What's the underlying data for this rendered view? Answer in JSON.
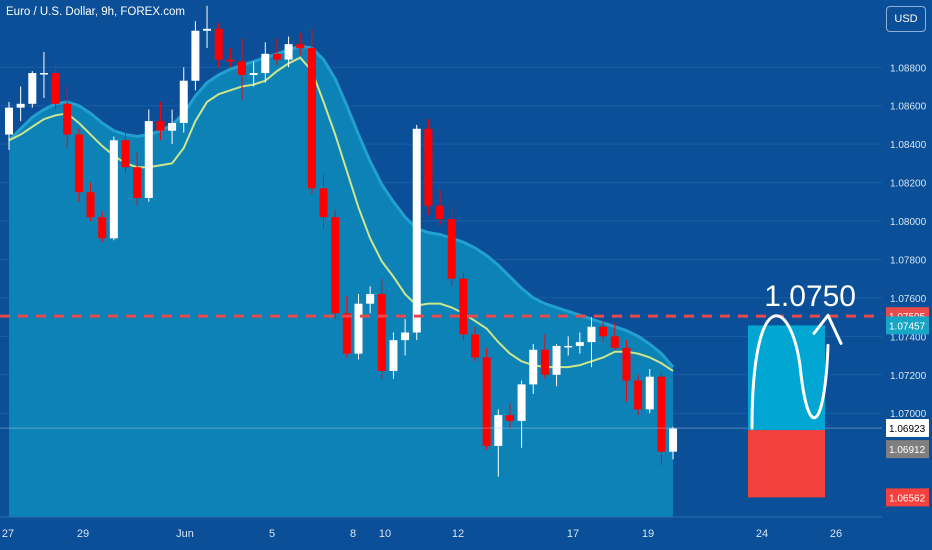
{
  "header": {
    "title": "Euro / U.S. Dollar, 9h, FOREX.com"
  },
  "currency_button": {
    "label": "USD"
  },
  "colors": {
    "background": "#0a4f98",
    "band_fill": "#0d85b8",
    "bull": "#ffffff",
    "bear": "#ff0000",
    "ma": "#cde68a",
    "target_box": "#01a6d3",
    "stop_box": "#f5413d",
    "resistance": "#e8494a"
  },
  "chart_data": {
    "type": "candlestick",
    "title": "Euro / U.S. Dollar, 9h, FOREX.com",
    "ylim": [
      1.0646,
      1.0915
    ],
    "y_ticks": [
      "1.08800",
      "1.08600",
      "1.08400",
      "1.08200",
      "1.08000",
      "1.07800",
      "1.07600",
      "1.07400",
      "1.07200",
      "1.07000"
    ],
    "x_ticks": [
      "27",
      "29",
      "Jun",
      "5",
      "8",
      "10",
      "12",
      "17",
      "19",
      "24",
      "26"
    ],
    "candles": [
      [
        1.0845,
        1.0862,
        1.0837,
        1.0859
      ],
      [
        1.0859,
        1.087,
        1.0852,
        1.0861
      ],
      [
        1.0861,
        1.0878,
        1.0859,
        1.0877
      ],
      [
        1.0877,
        1.0888,
        1.0864,
        1.0877
      ],
      [
        1.0877,
        1.0881,
        1.0858,
        1.0861
      ],
      [
        1.0861,
        1.087,
        1.0838,
        1.0845
      ],
      [
        1.0845,
        1.0848,
        1.081,
        1.0815
      ],
      [
        1.0815,
        1.082,
        1.08,
        1.0802
      ],
      [
        1.0802,
        1.0805,
        1.0789,
        1.0791
      ],
      [
        1.0791,
        1.0844,
        1.079,
        1.0842
      ],
      [
        1.0842,
        1.0846,
        1.0825,
        1.0828
      ],
      [
        1.0828,
        1.0836,
        1.0808,
        1.0812
      ],
      [
        1.0812,
        1.0858,
        1.081,
        1.0852
      ],
      [
        1.0852,
        1.0862,
        1.0842,
        1.0847
      ],
      [
        1.0847,
        1.0858,
        1.084,
        1.0851
      ],
      [
        1.0851,
        1.088,
        1.0846,
        1.0873
      ],
      [
        1.0873,
        1.0904,
        1.0868,
        1.0899
      ],
      [
        1.0899,
        1.0912,
        1.089,
        1.09
      ],
      [
        1.09,
        1.0903,
        1.088,
        1.0884
      ],
      [
        1.0884,
        1.089,
        1.088,
        1.0883
      ],
      [
        1.0883,
        1.0895,
        1.0863,
        1.0876
      ],
      [
        1.0876,
        1.0883,
        1.087,
        1.0877
      ],
      [
        1.0877,
        1.0893,
        1.0872,
        1.0887
      ],
      [
        1.0887,
        1.0895,
        1.0881,
        1.0884
      ],
      [
        1.0884,
        1.0896,
        1.088,
        1.0892
      ],
      [
        1.0892,
        1.0898,
        1.0886,
        1.089
      ],
      [
        1.089,
        1.09,
        1.0814,
        1.0817
      ],
      [
        1.0817,
        1.0824,
        1.0796,
        1.0802
      ],
      [
        1.0802,
        1.0806,
        1.0749,
        1.0752
      ],
      [
        1.0752,
        1.0761,
        1.0729,
        1.0731
      ],
      [
        1.0731,
        1.0762,
        1.0728,
        1.0757
      ],
      [
        1.0757,
        1.0766,
        1.0752,
        1.0762
      ],
      [
        1.0762,
        1.077,
        1.0718,
        1.0722
      ],
      [
        1.0722,
        1.0742,
        1.0718,
        1.0738
      ],
      [
        1.0738,
        1.0749,
        1.073,
        1.0742
      ],
      [
        1.0742,
        1.085,
        1.0738,
        1.0848
      ],
      [
        1.0848,
        1.0853,
        1.0803,
        1.0808
      ],
      [
        1.0808,
        1.0816,
        1.0798,
        1.0801
      ],
      [
        1.0801,
        1.0807,
        1.0766,
        1.077
      ],
      [
        1.077,
        1.0773,
        1.0738,
        1.0741
      ],
      [
        1.0741,
        1.0745,
        1.0727,
        1.0729
      ],
      [
        1.0729,
        1.0734,
        1.0681,
        1.0683
      ],
      [
        1.0683,
        1.0702,
        1.0667,
        1.0699
      ],
      [
        1.0699,
        1.0705,
        1.0692,
        1.0696
      ],
      [
        1.0696,
        1.0717,
        1.0682,
        1.0715
      ],
      [
        1.0715,
        1.0736,
        1.071,
        1.0733
      ],
      [
        1.0733,
        1.0741,
        1.0718,
        1.072
      ],
      [
        1.072,
        1.0736,
        1.0714,
        1.0735
      ],
      [
        1.0735,
        1.074,
        1.073,
        1.0735
      ],
      [
        1.0735,
        1.0742,
        1.0731,
        1.0737
      ],
      [
        1.0737,
        1.075,
        1.0724,
        1.0745
      ],
      [
        1.0745,
        1.0748,
        1.0737,
        1.074
      ],
      [
        1.074,
        1.0747,
        1.0733,
        1.0734
      ],
      [
        1.0734,
        1.0738,
        1.0706,
        1.0717
      ],
      [
        1.0717,
        1.072,
        1.0699,
        1.0702
      ],
      [
        1.0702,
        1.0723,
        1.07,
        1.0719
      ],
      [
        1.0719,
        1.0721,
        1.0673,
        1.068
      ],
      [
        1.068,
        1.0693,
        1.0676,
        1.0692
      ]
    ],
    "ma": [
      1.0842,
      1.0845,
      1.0849,
      1.0853,
      1.0855,
      1.0856,
      1.0851,
      1.0845,
      1.0839,
      1.0834,
      1.083,
      1.0828,
      1.0828,
      1.0829,
      1.083,
      1.0838,
      1.0852,
      1.0862,
      1.0866,
      1.0868,
      1.087,
      1.0871,
      1.0873,
      1.0878,
      1.0882,
      1.0885,
      1.0878,
      1.0862,
      1.0845,
      1.0826,
      1.0807,
      1.0791,
      1.0779,
      1.0771,
      1.0762,
      1.0756,
      1.0757,
      1.0757,
      1.0755,
      1.0752,
      1.0748,
      1.0744,
      1.0737,
      1.0731,
      1.0727,
      1.0725,
      1.0724,
      1.0724,
      1.0724,
      1.0725,
      1.0727,
      1.0729,
      1.0732,
      1.0732,
      1.0731,
      1.0729,
      1.0726,
      1.0722
    ],
    "band_upper": [
      1.0842,
      1.0848,
      1.0854,
      1.0858,
      1.0861,
      1.0862,
      1.086,
      1.0856,
      1.0851,
      1.0847,
      1.0845,
      1.0844,
      1.0845,
      1.0847,
      1.085,
      1.0856,
      1.0865,
      1.0872,
      1.0876,
      1.0879,
      1.0881,
      1.0883,
      1.0885,
      1.0887,
      1.0889,
      1.0891,
      1.089,
      1.0884,
      1.0874,
      1.086,
      1.0845,
      1.0831,
      1.0819,
      1.081,
      1.0802,
      1.0796,
      1.0794,
      1.0793,
      1.0791,
      1.0789,
      1.0786,
      1.0782,
      1.0777,
      1.0771,
      1.0765,
      1.076,
      1.0757,
      1.0755,
      1.0753,
      1.0751,
      1.0749,
      1.0747,
      1.0745,
      1.0743,
      1.074,
      1.0736,
      1.0731,
      1.0724
    ],
    "resistance": {
      "level": 1.07505,
      "label": "1.0750"
    },
    "price_labels": [
      "1.07505",
      "1.07457",
      "1.06923",
      "1.06912",
      "1.06562"
    ],
    "current_price": 1.06923,
    "projection": {
      "entry": 1.06912,
      "target": 1.07457,
      "stop": 1.06562
    }
  }
}
